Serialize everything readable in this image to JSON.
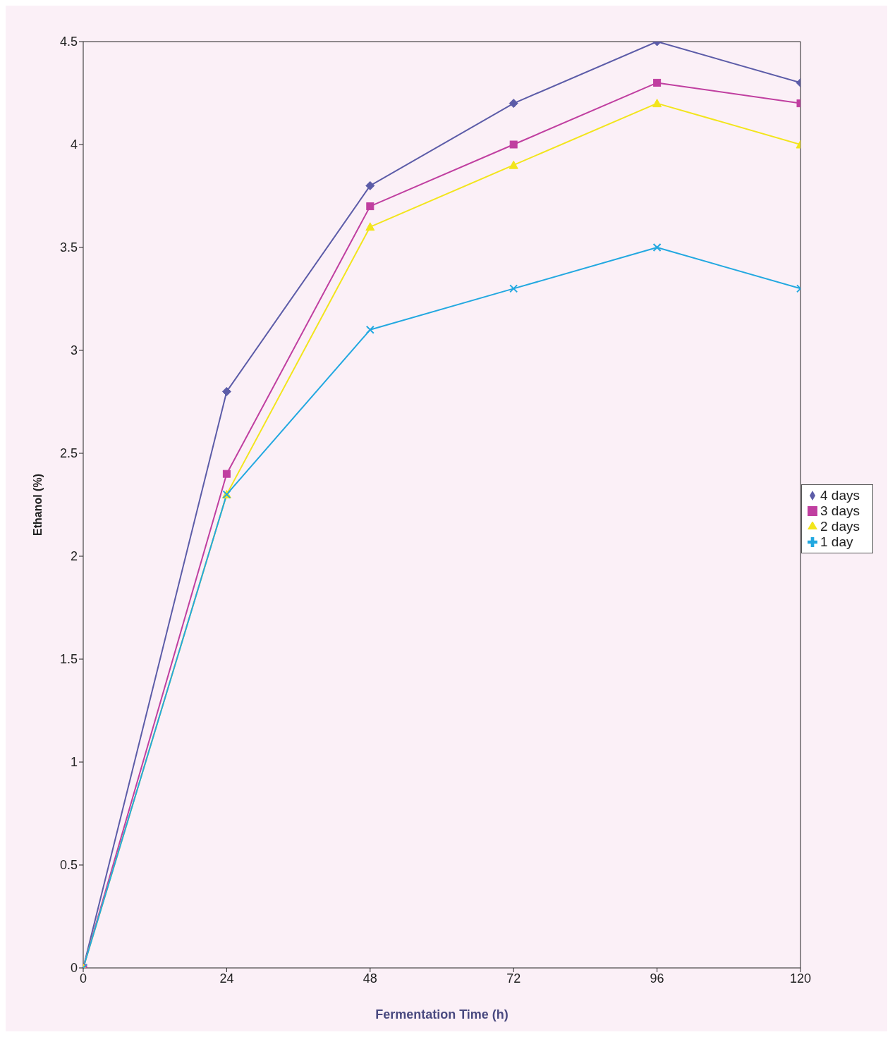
{
  "chart_data": {
    "type": "line",
    "xlabel": "Fermentation Time (h)",
    "ylabel": "Ethanol (%)",
    "x": [
      0,
      24,
      48,
      72,
      96,
      120
    ],
    "xlim": [
      0,
      120
    ],
    "xticks": [
      0,
      24,
      48,
      72,
      96,
      120
    ],
    "ylim": [
      0,
      4.5
    ],
    "yticks": [
      0,
      0.5,
      1,
      1.5,
      2,
      2.5,
      3,
      3.5,
      4,
      4.5
    ],
    "grid": false,
    "legend": "right",
    "series": [
      {
        "name": "4 days",
        "color": "#5c5ca8",
        "marker": "diamond",
        "values": [
          0,
          2.8,
          3.8,
          4.2,
          4.5,
          4.3
        ]
      },
      {
        "name": "3 days",
        "color": "#c03fa0",
        "marker": "square",
        "values": [
          0,
          2.4,
          3.7,
          4.0,
          4.3,
          4.2
        ]
      },
      {
        "name": "2 days",
        "color": "#f2e51c",
        "marker": "triangle",
        "values": [
          0,
          2.3,
          3.6,
          3.9,
          4.2,
          4.0
        ]
      },
      {
        "name": "1 day",
        "color": "#22a8e0",
        "marker": "cross",
        "values": [
          0,
          2.3,
          3.1,
          3.3,
          3.5,
          3.3
        ]
      }
    ]
  }
}
